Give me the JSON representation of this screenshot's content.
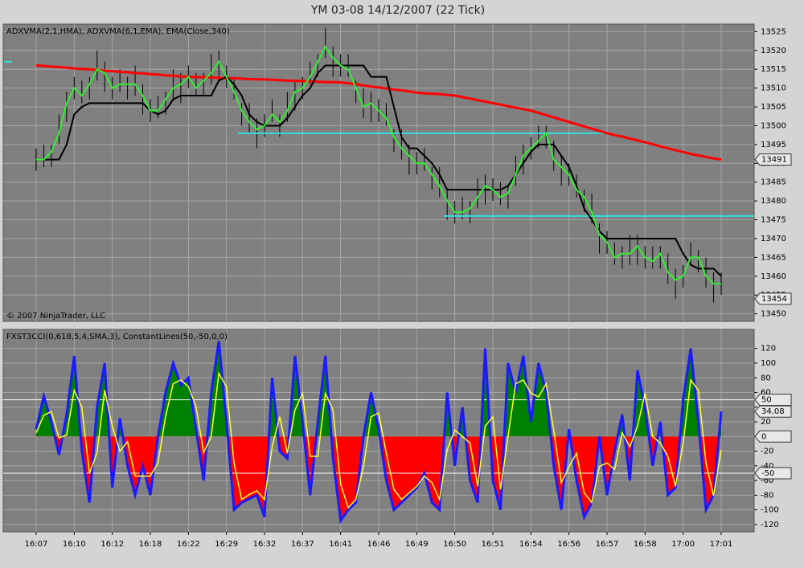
{
  "chart_data": {
    "type": "multi_panel",
    "title": "YM 03-08  14/12/2007  (22 Tick)",
    "categories": [
      "16:07",
      null,
      null,
      null,
      null,
      "16:10",
      null,
      null,
      null,
      null,
      "16:12",
      null,
      null,
      null,
      null,
      "16:18",
      null,
      null,
      null,
      null,
      "16:22",
      null,
      null,
      null,
      null,
      "16:29",
      null,
      null,
      null,
      null,
      "16:32",
      null,
      null,
      null,
      null,
      "16:37",
      null,
      null,
      null,
      null,
      "16:41",
      null,
      null,
      null,
      null,
      "16:46",
      null,
      null,
      null,
      null,
      "16:49",
      null,
      null,
      null,
      null,
      "16:50",
      null,
      null,
      null,
      null,
      "16:51",
      null,
      null,
      null,
      null,
      "16:54",
      null,
      null,
      null,
      null,
      "16:56",
      null,
      null,
      null,
      null,
      "16:57",
      null,
      null,
      null,
      null,
      "16:58",
      null,
      null,
      null,
      null,
      "17:00",
      null,
      null,
      null,
      null,
      "17:01"
    ],
    "panels": [
      {
        "type": "ohlc",
        "label": "ADXVMA(2,1,HMA), ADXVMA(6,1,EMA), EMA(Close,340)",
        "copyright": "© 2007 NinjaTrader, LLC",
        "ylim": [
          13448,
          13527
        ],
        "yticks": [
          13450,
          13455,
          13460,
          13465,
          13470,
          13475,
          13480,
          13485,
          13490,
          13495,
          13500,
          13505,
          13510,
          13515,
          13520,
          13525
        ],
        "grid": true,
        "color": "#000000",
        "high": [
          13494,
          13495,
          13495,
          13503,
          13509,
          13513,
          13512,
          13513,
          13520,
          13517,
          13513,
          13515,
          13513,
          13516,
          13511,
          13507,
          13508,
          13509,
          13515,
          13514,
          13516,
          13514,
          13514,
          13519,
          13520,
          13516,
          13513,
          13506,
          13506,
          13502,
          13503,
          13507,
          13503,
          13509,
          13512,
          13513,
          13517,
          13519,
          13526,
          13521,
          13519,
          13519,
          13512,
          13510,
          13509,
          13507,
          13506,
          13499,
          13499,
          13495,
          13493,
          13494,
          13489,
          13489,
          13483,
          13480,
          13481,
          13480,
          13486,
          13487,
          13486,
          13485,
          13484,
          13492,
          13495,
          13497,
          13500,
          13500,
          13496,
          13492,
          13490,
          13487,
          13483,
          13482,
          13474,
          13472,
          13469,
          13468,
          13471,
          13471,
          13468,
          13468,
          13468,
          13466,
          13462,
          13463,
          13469,
          13467,
          13465,
          13461,
          13461
        ],
        "low": [
          13488,
          13489,
          13489,
          13495,
          13501,
          13507,
          13506,
          13507,
          13512,
          13509,
          13507,
          13509,
          13507,
          13508,
          13503,
          13501,
          13502,
          13503,
          13507,
          13506,
          13510,
          13508,
          13508,
          13511,
          13512,
          13510,
          13507,
          13500,
          13498,
          13494,
          13497,
          13501,
          13497,
          13501,
          13504,
          13507,
          13511,
          13513,
          13518,
          13513,
          13513,
          13513,
          13506,
          13502,
          13501,
          13501,
          13500,
          13493,
          13491,
          13487,
          13487,
          13488,
          13483,
          13481,
          13475,
          13474,
          13475,
          13474,
          13478,
          13479,
          13480,
          13479,
          13478,
          13484,
          13487,
          13491,
          13494,
          13494,
          13488,
          13484,
          13484,
          13481,
          13477,
          13474,
          13466,
          13466,
          13463,
          13462,
          13463,
          13463,
          13462,
          13462,
          13462,
          13458,
          13454,
          13457,
          13463,
          13461,
          13457,
          13453,
          13455
        ],
        "series": [
          {
            "color": "#ff0000",
            "values": [
              13516,
              13515.9,
              13515.7,
              13515.6,
              13515.4,
              13515.2,
              13515.1,
              13515,
              13514.8,
              13514.6,
              13514.5,
              13514.3,
              13514.2,
              13514,
              13513.9,
              13513.7,
              13513.6,
              13513.4,
              13513.3,
              13513.1,
              13513,
              13512.9,
              13512.9,
              13512.8,
              13512.7,
              13512.6,
              13512.6,
              13512.5,
              13512.4,
              13512.3,
              13512.3,
              13512.2,
              13512.1,
              13512,
              13511.9,
              13511.9,
              13511.8,
              13511.7,
              13511.6,
              13511.6,
              13511.5,
              13511.3,
              13511,
              13510.7,
              13510.4,
              13510.2,
              13509.9,
              13509.6,
              13509.4,
              13509.1,
              13508.8,
              13508.6,
              13508.5,
              13508.4,
              13508.2,
              13508,
              13507.6,
              13507.2,
              13506.8,
              13506.4,
              13506,
              13505.6,
              13505.2,
              13504.8,
              13504.4,
              13504,
              13503.4,
              13502.8,
              13502.2,
              13501.6,
              13501,
              13500.4,
              13499.8,
              13499.2,
              13498.6,
              13498,
              13497.5,
              13497.1,
              13496.6,
              13496.1,
              13495.6,
              13495.1,
              13494.5,
              13494,
              13493.5,
              13493,
              13492.5,
              13492.1,
              13491.7,
              13491.3,
              13491
            ]
          },
          {
            "color": "#000000",
            "values": [
              13491,
              13491,
              13491,
              13491,
              13495,
              13503,
              13505,
              13506,
              13506,
              13506,
              13506,
              13506,
              13506,
              13506,
              13506,
              13504,
              13503,
              13504,
              13507,
              13508,
              13508,
              13508,
              13508,
              13508,
              13512,
              13513,
              13511,
              13508,
              13503,
              13501,
              13500,
              13500,
              13500,
              13502,
              13505,
              13508,
              13510,
              13514,
              13516,
              13516,
              13516,
              13516,
              13516,
              13516,
              13513,
              13513,
              13513,
              13505,
              13497,
              13494,
              13494,
              13492,
              13490,
              13487,
              13483,
              13483,
              13483,
              13483,
              13483,
              13483,
              13483,
              13483,
              13484,
              13487,
              13490,
              13493,
              13495,
              13495,
              13495,
              13492,
              13489,
              13484,
              13478,
              13475,
              13472,
              13470,
              13470,
              13470,
              13470,
              13470,
              13470,
              13470,
              13470,
              13470,
              13470,
              13466,
              13463,
              13462,
              13462,
              13462,
              13460
            ]
          },
          {
            "color": "#33ee33",
            "values": [
              13491,
              13491,
              13493,
              13498,
              13506,
              13510,
              13508,
              13511,
              13515,
              13514,
              13510,
              13511,
              13511,
              13511,
              13508,
              13504,
              13504,
              13507,
              13510,
              13511,
              13513,
              13510,
              13512,
              13514,
              13517,
              13513,
              13509,
              13504,
              13501,
              13499,
              13500,
              13503,
              13501,
              13504,
              13509,
              13510,
              13513,
              13517,
              13521,
              13518,
              13516,
              13515,
              13510,
              13505,
              13506,
              13504,
              13502,
              13497,
              13494,
              13492,
              13490,
              13490,
              13487,
              13484,
              13480,
              13477,
              13477,
              13478,
              13481,
              13484,
              13483,
              13481,
              13482,
              13487,
              13492,
              13494,
              13496,
              13498,
              13491,
              13489,
              13487,
              13483,
              13481,
              13477,
              13471,
              13469,
              13465,
              13466,
              13466,
              13468,
              13465,
              13464,
              13466,
              13461,
              13459,
              13460,
              13465,
              13465,
              13460,
              13458,
              13458
            ]
          }
        ],
        "levels": [
          13517,
          13498,
          13476
        ],
        "level_color": "#33dddd",
        "value_markers": [
          13491,
          13454
        ]
      },
      {
        "type": "oscillator",
        "label": "FXST3CCI(0,618,5,4,SMA,3), ConstantLines(50,-50,0,0)",
        "ylim": [
          -130,
          146
        ],
        "yticks": [
          -120,
          -100,
          -80,
          -60,
          -40,
          -20,
          0,
          20,
          40,
          60,
          80,
          100,
          120
        ],
        "grid": true,
        "series": [
          {
            "color": "#1a1aff",
            "values": [
              10,
              55,
              20,
              -25,
              30,
              110,
              -20,
              -90,
              40,
              100,
              -70,
              25,
              -40,
              -80,
              -40,
              -80,
              0,
              60,
              100,
              70,
              80,
              10,
              -60,
              60,
              130,
              20,
              -100,
              -90,
              -85,
              -80,
              -110,
              80,
              -20,
              -30,
              110,
              20,
              -80,
              20,
              110,
              -30,
              -115,
              -100,
              -90,
              0,
              60,
              10,
              -60,
              -100,
              -90,
              -80,
              -70,
              -50,
              -90,
              -100,
              60,
              -40,
              40,
              -60,
              -90,
              120,
              -60,
              -100,
              100,
              60,
              110,
              20,
              100,
              60,
              -40,
              -100,
              10,
              -60,
              -110,
              -90,
              0,
              -80,
              -20,
              30,
              -60,
              90,
              40,
              -40,
              20,
              -80,
              -70,
              50,
              120,
              20,
              -100,
              -80,
              34.08
            ]
          },
          {
            "color": "#ffff33",
            "values": [
              5,
              29,
              34,
              -2,
              2,
              63,
              40,
              -50,
              -22,
              63,
              14,
              -20,
              -7,
              -54,
              -54,
              -54,
              -36,
              27,
              72,
              77,
              68,
              41,
              -22,
              0,
              86,
              68,
              -36,
              -86,
              -79,
              -74,
              -86,
              -14,
              27,
              -23,
              36,
              59,
              -27,
              -27,
              59,
              36,
              -65,
              -97,
              -86,
              -41,
              27,
              32,
              -23,
              -72,
              -86,
              -77,
              -68,
              -54,
              -63,
              -86,
              -18,
              9,
              0,
              -9,
              -68,
              14,
              27,
              -72,
              0,
              72,
              77,
              59,
              54,
              72,
              9,
              -63,
              -41,
              -23,
              -77,
              -90,
              -41,
              -36,
              -45,
              5,
              -14,
              14,
              59,
              0,
              -9,
              -27,
              -68,
              -9,
              77,
              63,
              -36,
              -81,
              -18
            ]
          }
        ],
        "fill_colors": {
          "positive": "#008000",
          "negative": "#ff0000"
        },
        "constant_lines": [
          50,
          -50
        ],
        "constant_color": "#ffffff",
        "value_markers": [
          50,
          {
            "value": 34.08,
            "label": "34,08"
          },
          0,
          -50
        ]
      }
    ]
  }
}
